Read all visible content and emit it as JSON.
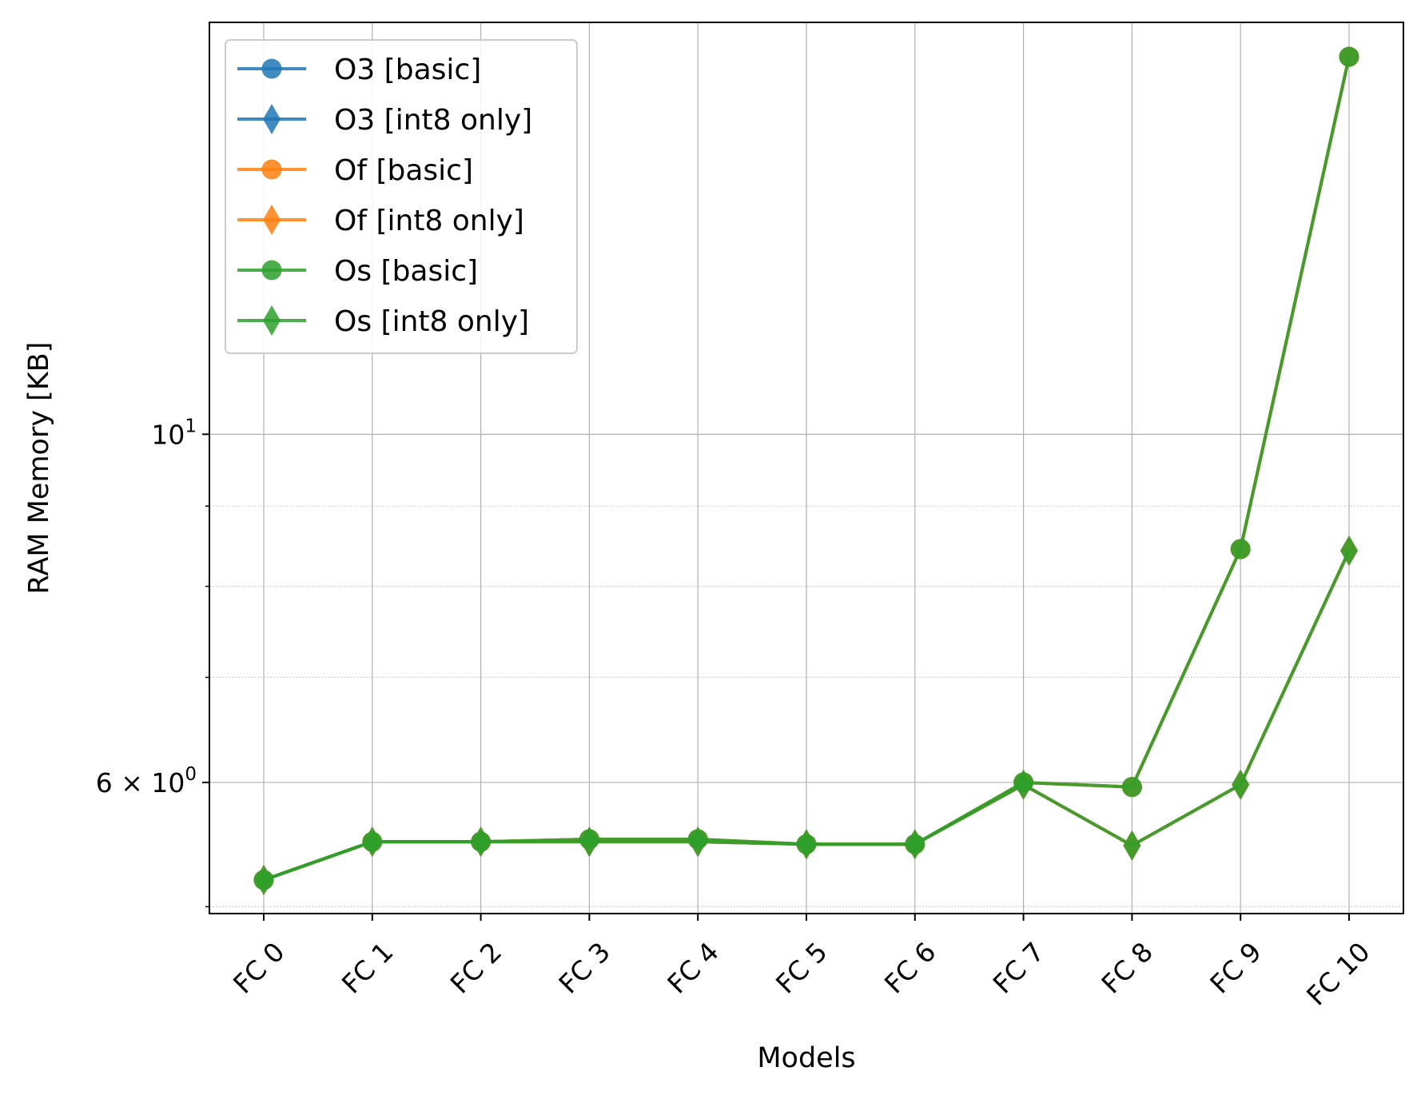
{
  "chart_data": {
    "type": "line",
    "xlabel": "Models",
    "ylabel": "RAM Memory [KB]",
    "y_scale": "log",
    "ylim": [
      4.95,
      18.3
    ],
    "grid": true,
    "legend_position": "top-left",
    "categories": [
      "FC 0",
      "FC 1",
      "FC 2",
      "FC 3",
      "FC 4",
      "FC 5",
      "FC 6",
      "FC 7",
      "FC 8",
      "FC 9",
      "FC 10"
    ],
    "y_ticks": [
      {
        "value": 10,
        "base": "10",
        "exp": "1"
      },
      {
        "value": 6,
        "mantissa": "6 × ",
        "base": "10",
        "exp": "0"
      }
    ],
    "series": [
      {
        "name": "O3 [basic]",
        "color": "#1f77b4",
        "marker": "circle",
        "values": [
          5.2,
          5.5,
          5.5,
          5.52,
          5.52,
          5.48,
          5.48,
          6.0,
          5.96,
          8.45,
          17.4
        ]
      },
      {
        "name": "O3 [int8 only]",
        "color": "#1f77b4",
        "marker": "diamond",
        "values": [
          5.2,
          5.5,
          5.5,
          5.5,
          5.5,
          5.48,
          5.48,
          5.98,
          5.47,
          5.98,
          8.43
        ]
      },
      {
        "name": "Of [basic]",
        "color": "#ff7f0e",
        "marker": "circle",
        "values": [
          5.2,
          5.5,
          5.5,
          5.52,
          5.52,
          5.48,
          5.48,
          6.0,
          5.96,
          8.45,
          17.4
        ]
      },
      {
        "name": "Of [int8 only]",
        "color": "#ff7f0e",
        "marker": "diamond",
        "values": [
          5.2,
          5.5,
          5.5,
          5.5,
          5.5,
          5.48,
          5.48,
          5.98,
          5.47,
          5.98,
          8.43
        ]
      },
      {
        "name": "Os [basic]",
        "color": "#2ca02c",
        "marker": "circle",
        "values": [
          5.2,
          5.5,
          5.5,
          5.52,
          5.52,
          5.48,
          5.48,
          6.0,
          5.96,
          8.45,
          17.4
        ]
      },
      {
        "name": "Os [int8 only]",
        "color": "#2ca02c",
        "marker": "diamond",
        "values": [
          5.2,
          5.5,
          5.5,
          5.5,
          5.5,
          5.48,
          5.48,
          5.98,
          5.47,
          5.98,
          8.43
        ]
      }
    ]
  }
}
